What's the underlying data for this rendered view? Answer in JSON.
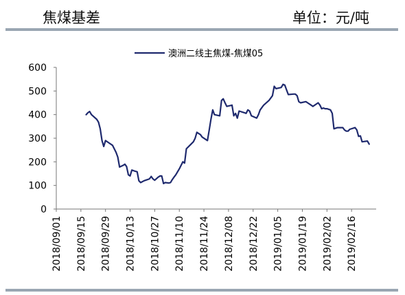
{
  "header": {
    "title": "焦煤基差",
    "unit": "单位：元/吨"
  },
  "chart_data": {
    "type": "line",
    "title": "焦煤基差",
    "xlabel": "",
    "ylabel": "",
    "ylim": [
      0,
      600
    ],
    "yticks": [
      0,
      100,
      200,
      300,
      400,
      500,
      600
    ],
    "xlim": [
      "2018-09-01",
      "2019-03-02"
    ],
    "xticks": [
      "2018/09/01",
      "2018/09/15",
      "2018/09/29",
      "2018/10/13",
      "2018/10/27",
      "2018/11/10",
      "2018/11/24",
      "2018/12/08",
      "2018/12/22",
      "2019/01/05",
      "2019/01/19",
      "2019/02/02",
      "2019/02/16"
    ],
    "grid": false,
    "legend": "top-center",
    "series": [
      {
        "name": "澳洲二线主焦煤-焦煤05",
        "color": "#1f2a6e",
        "points": [
          [
            "2018-09-18",
            400
          ],
          [
            "2018-09-19",
            408
          ],
          [
            "2018-09-20",
            413
          ],
          [
            "2018-09-21",
            400
          ],
          [
            "2018-09-24",
            380
          ],
          [
            "2018-09-25",
            368
          ],
          [
            "2018-09-26",
            340
          ],
          [
            "2018-09-27",
            290
          ],
          [
            "2018-09-28",
            265
          ],
          [
            "2018-09-29",
            290
          ],
          [
            "2018-10-01",
            280
          ],
          [
            "2018-10-03",
            270
          ],
          [
            "2018-10-05",
            240
          ],
          [
            "2018-10-06",
            220
          ],
          [
            "2018-10-07",
            178
          ],
          [
            "2018-10-09",
            185
          ],
          [
            "2018-10-10",
            190
          ],
          [
            "2018-10-11",
            180
          ],
          [
            "2018-10-12",
            145
          ],
          [
            "2018-10-13",
            140
          ],
          [
            "2018-10-14",
            165
          ],
          [
            "2018-10-16",
            160
          ],
          [
            "2018-10-17",
            158
          ],
          [
            "2018-10-18",
            120
          ],
          [
            "2018-10-19",
            112
          ],
          [
            "2018-10-21",
            120
          ],
          [
            "2018-10-23",
            125
          ],
          [
            "2018-10-24",
            128
          ],
          [
            "2018-10-25",
            138
          ],
          [
            "2018-10-26",
            128
          ],
          [
            "2018-10-27",
            122
          ],
          [
            "2018-10-29",
            135
          ],
          [
            "2018-10-30",
            140
          ],
          [
            "2018-10-31",
            140
          ],
          [
            "2018-11-01",
            108
          ],
          [
            "2018-11-02",
            112
          ],
          [
            "2018-11-04",
            110
          ],
          [
            "2018-11-05",
            112
          ],
          [
            "2018-11-06",
            125
          ],
          [
            "2018-11-07",
            135
          ],
          [
            "2018-11-08",
            145
          ],
          [
            "2018-11-10",
            170
          ],
          [
            "2018-11-12",
            200
          ],
          [
            "2018-11-13",
            195
          ],
          [
            "2018-11-14",
            255
          ],
          [
            "2018-11-16",
            270
          ],
          [
            "2018-11-18",
            285
          ],
          [
            "2018-11-19",
            300
          ],
          [
            "2018-11-20",
            325
          ],
          [
            "2018-11-22",
            315
          ],
          [
            "2018-11-23",
            305
          ],
          [
            "2018-11-26",
            290
          ],
          [
            "2018-11-27",
            335
          ],
          [
            "2018-11-28",
            380
          ],
          [
            "2018-11-29",
            420
          ],
          [
            "2018-11-30",
            400
          ],
          [
            "2018-12-03",
            395
          ],
          [
            "2018-12-04",
            460
          ],
          [
            "2018-12-05",
            467
          ],
          [
            "2018-12-06",
            450
          ],
          [
            "2018-12-07",
            435
          ],
          [
            "2018-12-10",
            440
          ],
          [
            "2018-12-11",
            395
          ],
          [
            "2018-12-12",
            405
          ],
          [
            "2018-12-13",
            385
          ],
          [
            "2018-12-14",
            415
          ],
          [
            "2018-12-17",
            408
          ],
          [
            "2018-12-18",
            405
          ],
          [
            "2018-12-19",
            420
          ],
          [
            "2018-12-20",
            415
          ],
          [
            "2018-12-21",
            395
          ],
          [
            "2018-12-24",
            385
          ],
          [
            "2018-12-25",
            400
          ],
          [
            "2018-12-26",
            420
          ],
          [
            "2018-12-28",
            440
          ],
          [
            "2018-12-31",
            460
          ],
          [
            "2019-01-02",
            480
          ],
          [
            "2019-01-03",
            520
          ],
          [
            "2019-01-04",
            510
          ],
          [
            "2019-01-07",
            515
          ],
          [
            "2019-01-08",
            528
          ],
          [
            "2019-01-09",
            525
          ],
          [
            "2019-01-10",
            505
          ],
          [
            "2019-01-11",
            485
          ],
          [
            "2019-01-14",
            487
          ],
          [
            "2019-01-15",
            487
          ],
          [
            "2019-01-16",
            480
          ],
          [
            "2019-01-17",
            455
          ],
          [
            "2019-01-18",
            450
          ],
          [
            "2019-01-21",
            455
          ],
          [
            "2019-01-22",
            450
          ],
          [
            "2019-01-23",
            445
          ],
          [
            "2019-01-24",
            440
          ],
          [
            "2019-01-25",
            435
          ],
          [
            "2019-01-28",
            450
          ],
          [
            "2019-01-29",
            440
          ],
          [
            "2019-01-30",
            425
          ],
          [
            "2019-01-31",
            428
          ],
          [
            "2019-02-01",
            425
          ],
          [
            "2019-02-02",
            425
          ],
          [
            "2019-02-04",
            420
          ],
          [
            "2019-02-05",
            405
          ],
          [
            "2019-02-06",
            340
          ],
          [
            "2019-02-08",
            345
          ],
          [
            "2019-02-11",
            345
          ],
          [
            "2019-02-12",
            335
          ],
          [
            "2019-02-13",
            330
          ],
          [
            "2019-02-14",
            330
          ],
          [
            "2019-02-15",
            338
          ],
          [
            "2019-02-18",
            345
          ],
          [
            "2019-02-19",
            335
          ],
          [
            "2019-02-20",
            308
          ],
          [
            "2019-02-21",
            310
          ],
          [
            "2019-02-22",
            285
          ],
          [
            "2019-02-25",
            288
          ],
          [
            "2019-02-26",
            275
          ]
        ]
      }
    ]
  }
}
